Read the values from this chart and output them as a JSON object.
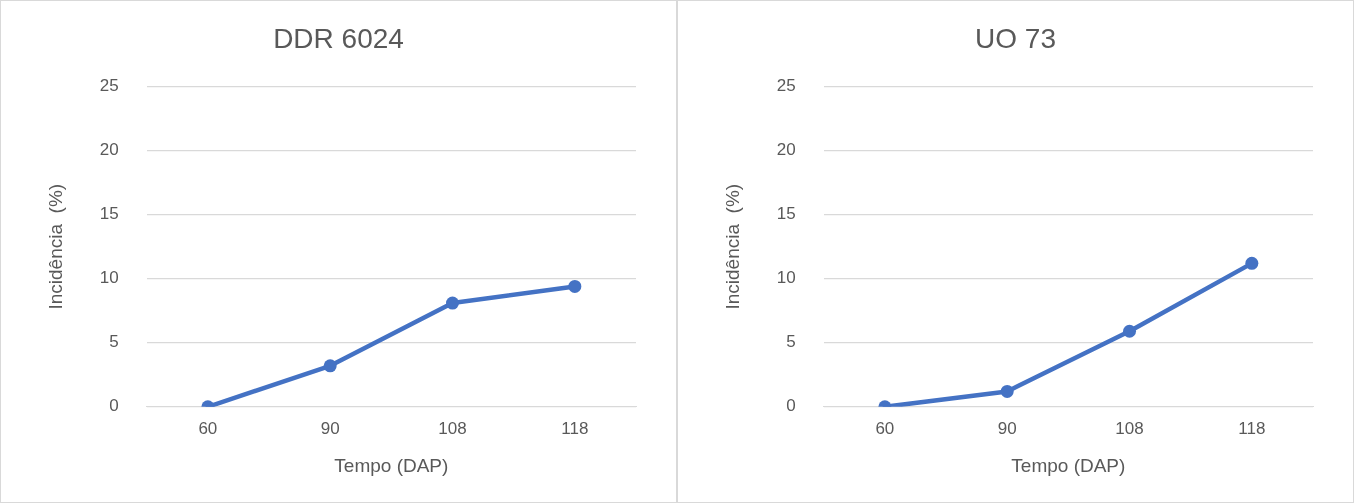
{
  "chart_data": [
    {
      "type": "line",
      "title": "DDR 6024",
      "xlabel": "Tempo (DAP)",
      "ylabel": "Incidência  (%)",
      "categories": [
        "60",
        "90",
        "108",
        "118"
      ],
      "series": [
        {
          "color": "#4472c4",
          "values": [
            0,
            3.2,
            8.1,
            9.4
          ]
        }
      ],
      "ylim": [
        0,
        25
      ],
      "yticks": [
        0,
        5,
        10,
        15,
        20,
        25
      ],
      "grid": "y",
      "legend": false,
      "marker": "circle",
      "line_style": "solid"
    },
    {
      "type": "line",
      "title": "UO 73",
      "xlabel": "Tempo (DAP)",
      "ylabel": "Incidência  (%)",
      "categories": [
        "60",
        "90",
        "108",
        "118"
      ],
      "series": [
        {
          "color": "#4472c4",
          "values": [
            0,
            1.2,
            5.9,
            11.2
          ]
        }
      ],
      "ylim": [
        0,
        25
      ],
      "yticks": [
        0,
        5,
        10,
        15,
        20,
        25
      ],
      "grid": "y",
      "legend": false,
      "marker": "circle",
      "line_style": "solid"
    }
  ]
}
